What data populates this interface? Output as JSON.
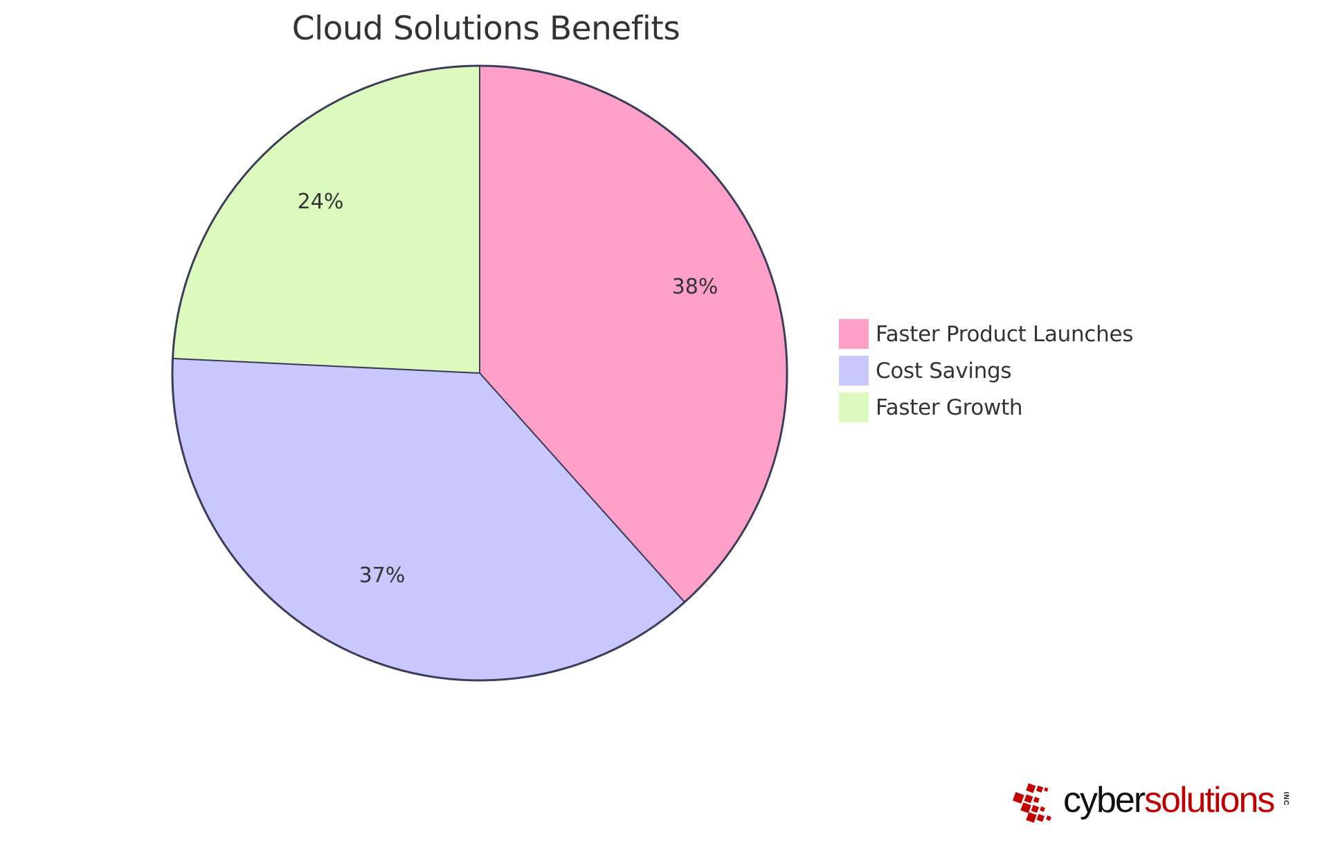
{
  "chart_data": {
    "type": "pie",
    "title": "Cloud Solutions Benefits",
    "categories": [
      "Faster Product Launches",
      "Cost Savings",
      "Faster Growth"
    ],
    "values": [
      38,
      37,
      24
    ],
    "labels": [
      "38%",
      "37%",
      "24%"
    ],
    "colors": [
      "#ffa0c8",
      "#c8c8ff",
      "#dcfabe"
    ],
    "stroke_color": "#3c3c5a",
    "legend_position": "right",
    "start_angle": "top, clockwise"
  },
  "title": "Cloud Solutions Benefits",
  "legend": {
    "items": [
      {
        "label": "Faster Product Launches",
        "color": "#ffa0c8"
      },
      {
        "label": "Cost Savings",
        "color": "#c8c8ff"
      },
      {
        "label": "Faster Growth",
        "color": "#dcfabe"
      }
    ]
  },
  "slice_labels": [
    "38%",
    "37%",
    "24%"
  ],
  "logo": {
    "part1": "cyber",
    "part2": "solutions",
    "suffix": "INC",
    "color_primary": "#c00000"
  }
}
